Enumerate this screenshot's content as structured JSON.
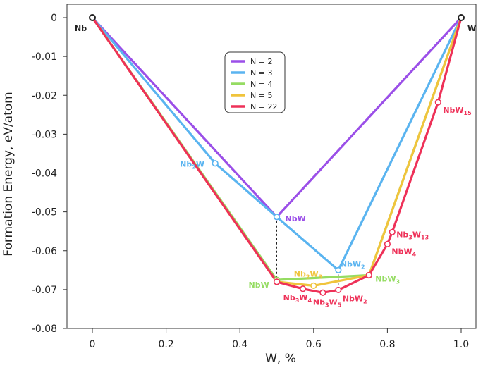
{
  "chart_data": {
    "type": "line",
    "title": "",
    "xlabel": "W, %",
    "ylabel": "Formation Energy, eV/atom",
    "xlim": [
      -0.1,
      1.05
    ],
    "ylim": [
      -0.08,
      0.003
    ],
    "xticks": [
      "0",
      "0.2",
      "0.4",
      "0.6",
      "0.8",
      "1.0"
    ],
    "xtick_values": [
      0,
      0.2,
      0.4,
      0.6,
      0.8,
      1.0
    ],
    "yticks": [
      "0",
      "-0.01",
      "-0.02",
      "-0.03",
      "-0.04",
      "-0.05",
      "-0.06",
      "-0.07",
      "-0.08"
    ],
    "ytick_values": [
      0,
      -0.01,
      -0.02,
      -0.03,
      -0.04,
      -0.05,
      -0.06,
      -0.07,
      -0.08
    ],
    "legend_position": "upper-center",
    "series": [
      {
        "name": "N = 2",
        "color": "#9b4fe8",
        "points": [
          [
            0,
            0
          ],
          [
            0.5,
            -0.0513
          ],
          [
            1.0,
            0
          ]
        ]
      },
      {
        "name": "N = 3",
        "color": "#5ab4f0",
        "points": [
          [
            0,
            0
          ],
          [
            0.333,
            -0.0375
          ],
          [
            0.5,
            -0.0513
          ],
          [
            0.667,
            -0.065
          ],
          [
            1.0,
            0
          ]
        ]
      },
      {
        "name": "N = 4",
        "color": "#95dc62",
        "points": [
          [
            0,
            0
          ],
          [
            0.5,
            -0.0675
          ],
          [
            0.75,
            -0.0663
          ],
          [
            1.0,
            0
          ]
        ]
      },
      {
        "name": "N = 5",
        "color": "#f0c43c",
        "points": [
          [
            0,
            0
          ],
          [
            0.5,
            -0.068
          ],
          [
            0.6,
            -0.069
          ],
          [
            0.75,
            -0.0663
          ],
          [
            1.0,
            0
          ]
        ]
      },
      {
        "name": "N = 22",
        "color": "#ee3158",
        "points": [
          [
            0,
            0
          ],
          [
            0.5,
            -0.068
          ],
          [
            0.571,
            -0.0698
          ],
          [
            0.625,
            -0.0708
          ],
          [
            0.667,
            -0.0701
          ],
          [
            0.75,
            -0.0663
          ],
          [
            0.8,
            -0.0583
          ],
          [
            0.813,
            -0.0552
          ],
          [
            0.9375,
            -0.0218
          ],
          [
            1.0,
            0
          ]
        ]
      }
    ],
    "point_labels": [
      {
        "text": "Nb",
        "sub": "",
        "x": 0,
        "y": 0,
        "color": "#222222"
      },
      {
        "text": "W",
        "sub": "",
        "x": 1.0,
        "y": 0,
        "color": "#222222"
      },
      {
        "text": "NbW",
        "sub": "",
        "x": 0.5,
        "y": -0.0513,
        "color": "#9b4fe8"
      },
      {
        "text": "Nb",
        "sub": "2",
        "after": "W",
        "x": 0.333,
        "y": -0.0375,
        "color": "#5ab4f0"
      },
      {
        "text": "NbW",
        "sub": "2",
        "x": 0.667,
        "y": -0.065,
        "color": "#5ab4f0"
      },
      {
        "text": "NbW",
        "sub": "",
        "x": 0.5,
        "y": -0.0675,
        "color": "#95dc62"
      },
      {
        "text": "NbW",
        "sub": "3",
        "x": 0.75,
        "y": -0.0663,
        "color": "#95dc62"
      },
      {
        "text": "Nb",
        "sub": "2",
        "after": "W",
        "sub2": "3",
        "x": 0.6,
        "y": -0.069,
        "color": "#f0c43c"
      },
      {
        "text": "Nb",
        "sub": "3",
        "after": "W",
        "sub2": "4",
        "x": 0.571,
        "y": -0.0698,
        "color": "#ee3158"
      },
      {
        "text": "Nb",
        "sub": "3",
        "after": "W",
        "sub2": "5",
        "x": 0.625,
        "y": -0.0708,
        "color": "#ee3158"
      },
      {
        "text": "NbW",
        "sub": "2",
        "x": 0.667,
        "y": -0.0701,
        "color": "#ee3158"
      },
      {
        "text": "NbW",
        "sub": "4",
        "x": 0.8,
        "y": -0.0583,
        "color": "#ee3158"
      },
      {
        "text": "Nb",
        "sub": "3",
        "after": "W",
        "sub2": "13",
        "x": 0.813,
        "y": -0.0552,
        "color": "#ee3158"
      },
      {
        "text": "NbW",
        "sub": "15",
        "x": 0.9375,
        "y": -0.0218,
        "color": "#ee3158"
      }
    ],
    "dashed_connectors": [
      {
        "x": 0.5,
        "y1": -0.0513,
        "y2": -0.0675
      },
      {
        "x": 0.667,
        "y1": -0.065,
        "y2": -0.0701
      }
    ]
  }
}
